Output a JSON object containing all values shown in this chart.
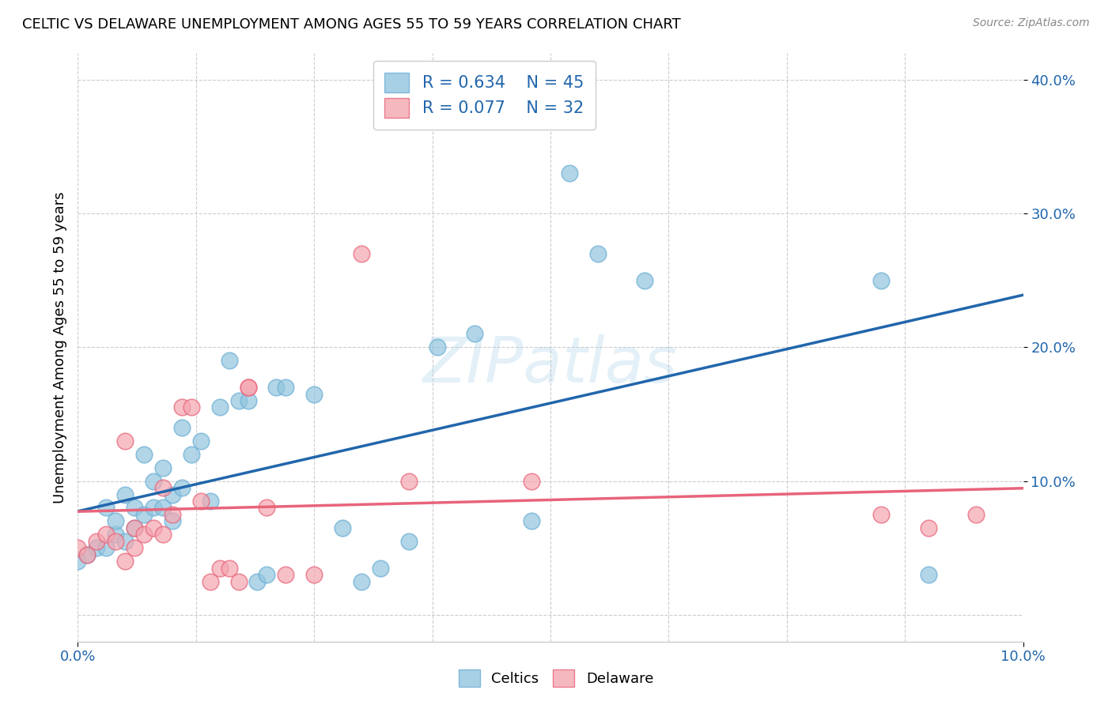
{
  "title": "CELTIC VS DELAWARE UNEMPLOYMENT AMONG AGES 55 TO 59 YEARS CORRELATION CHART",
  "source": "Source: ZipAtlas.com",
  "ylabel": "Unemployment Among Ages 55 to 59 years",
  "xlim": [
    0.0,
    0.1
  ],
  "ylim": [
    -0.02,
    0.42
  ],
  "xtick_positions": [
    0.0,
    0.1
  ],
  "xtick_labels": [
    "0.0%",
    "10.0%"
  ],
  "ytick_positions": [
    0.1,
    0.2,
    0.3,
    0.4
  ],
  "ytick_labels": [
    "10.0%",
    "20.0%",
    "30.0%",
    "40.0%"
  ],
  "grid_yticks": [
    0.0,
    0.1,
    0.2,
    0.3,
    0.4
  ],
  "grid_xticks": [
    0.0,
    0.0125,
    0.025,
    0.0375,
    0.05,
    0.0625,
    0.075,
    0.0875,
    0.1
  ],
  "grid_color": "#cccccc",
  "celtics_color": "#92c5de",
  "celtics_edge_color": "#6baed6",
  "delaware_color": "#f4a6b0",
  "delaware_edge_color": "#e8647a",
  "celtics_line_color": "#2166ac",
  "delaware_line_color": "#e8647a",
  "celtics_R": 0.634,
  "celtics_N": 45,
  "delaware_R": 0.077,
  "delaware_N": 32,
  "legend_label_1": "Celtics",
  "legend_label_2": "Delaware",
  "watermark": "ZIPatlas",
  "celtics_x": [
    0.0,
    0.001,
    0.002,
    0.003,
    0.003,
    0.004,
    0.004,
    0.005,
    0.005,
    0.006,
    0.006,
    0.007,
    0.007,
    0.008,
    0.008,
    0.009,
    0.009,
    0.01,
    0.01,
    0.011,
    0.011,
    0.012,
    0.013,
    0.014,
    0.015,
    0.016,
    0.017,
    0.018,
    0.019,
    0.02,
    0.021,
    0.022,
    0.025,
    0.028,
    0.03,
    0.032,
    0.035,
    0.038,
    0.042,
    0.048,
    0.052,
    0.055,
    0.06,
    0.085,
    0.09
  ],
  "celtics_y": [
    0.04,
    0.045,
    0.05,
    0.05,
    0.08,
    0.06,
    0.07,
    0.055,
    0.09,
    0.065,
    0.08,
    0.075,
    0.12,
    0.08,
    0.1,
    0.08,
    0.11,
    0.07,
    0.09,
    0.095,
    0.14,
    0.12,
    0.13,
    0.085,
    0.155,
    0.19,
    0.16,
    0.16,
    0.025,
    0.03,
    0.17,
    0.17,
    0.165,
    0.065,
    0.025,
    0.035,
    0.055,
    0.2,
    0.21,
    0.07,
    0.33,
    0.27,
    0.25,
    0.25,
    0.03
  ],
  "delaware_x": [
    0.0,
    0.001,
    0.002,
    0.003,
    0.004,
    0.005,
    0.005,
    0.006,
    0.006,
    0.007,
    0.008,
    0.009,
    0.009,
    0.01,
    0.011,
    0.012,
    0.013,
    0.014,
    0.015,
    0.016,
    0.017,
    0.018,
    0.018,
    0.02,
    0.022,
    0.025,
    0.03,
    0.035,
    0.048,
    0.085,
    0.09,
    0.095
  ],
  "delaware_y": [
    0.05,
    0.045,
    0.055,
    0.06,
    0.055,
    0.04,
    0.13,
    0.05,
    0.065,
    0.06,
    0.065,
    0.06,
    0.095,
    0.075,
    0.155,
    0.155,
    0.085,
    0.025,
    0.035,
    0.035,
    0.025,
    0.17,
    0.17,
    0.08,
    0.03,
    0.03,
    0.27,
    0.1,
    0.1,
    0.075,
    0.065,
    0.075
  ]
}
